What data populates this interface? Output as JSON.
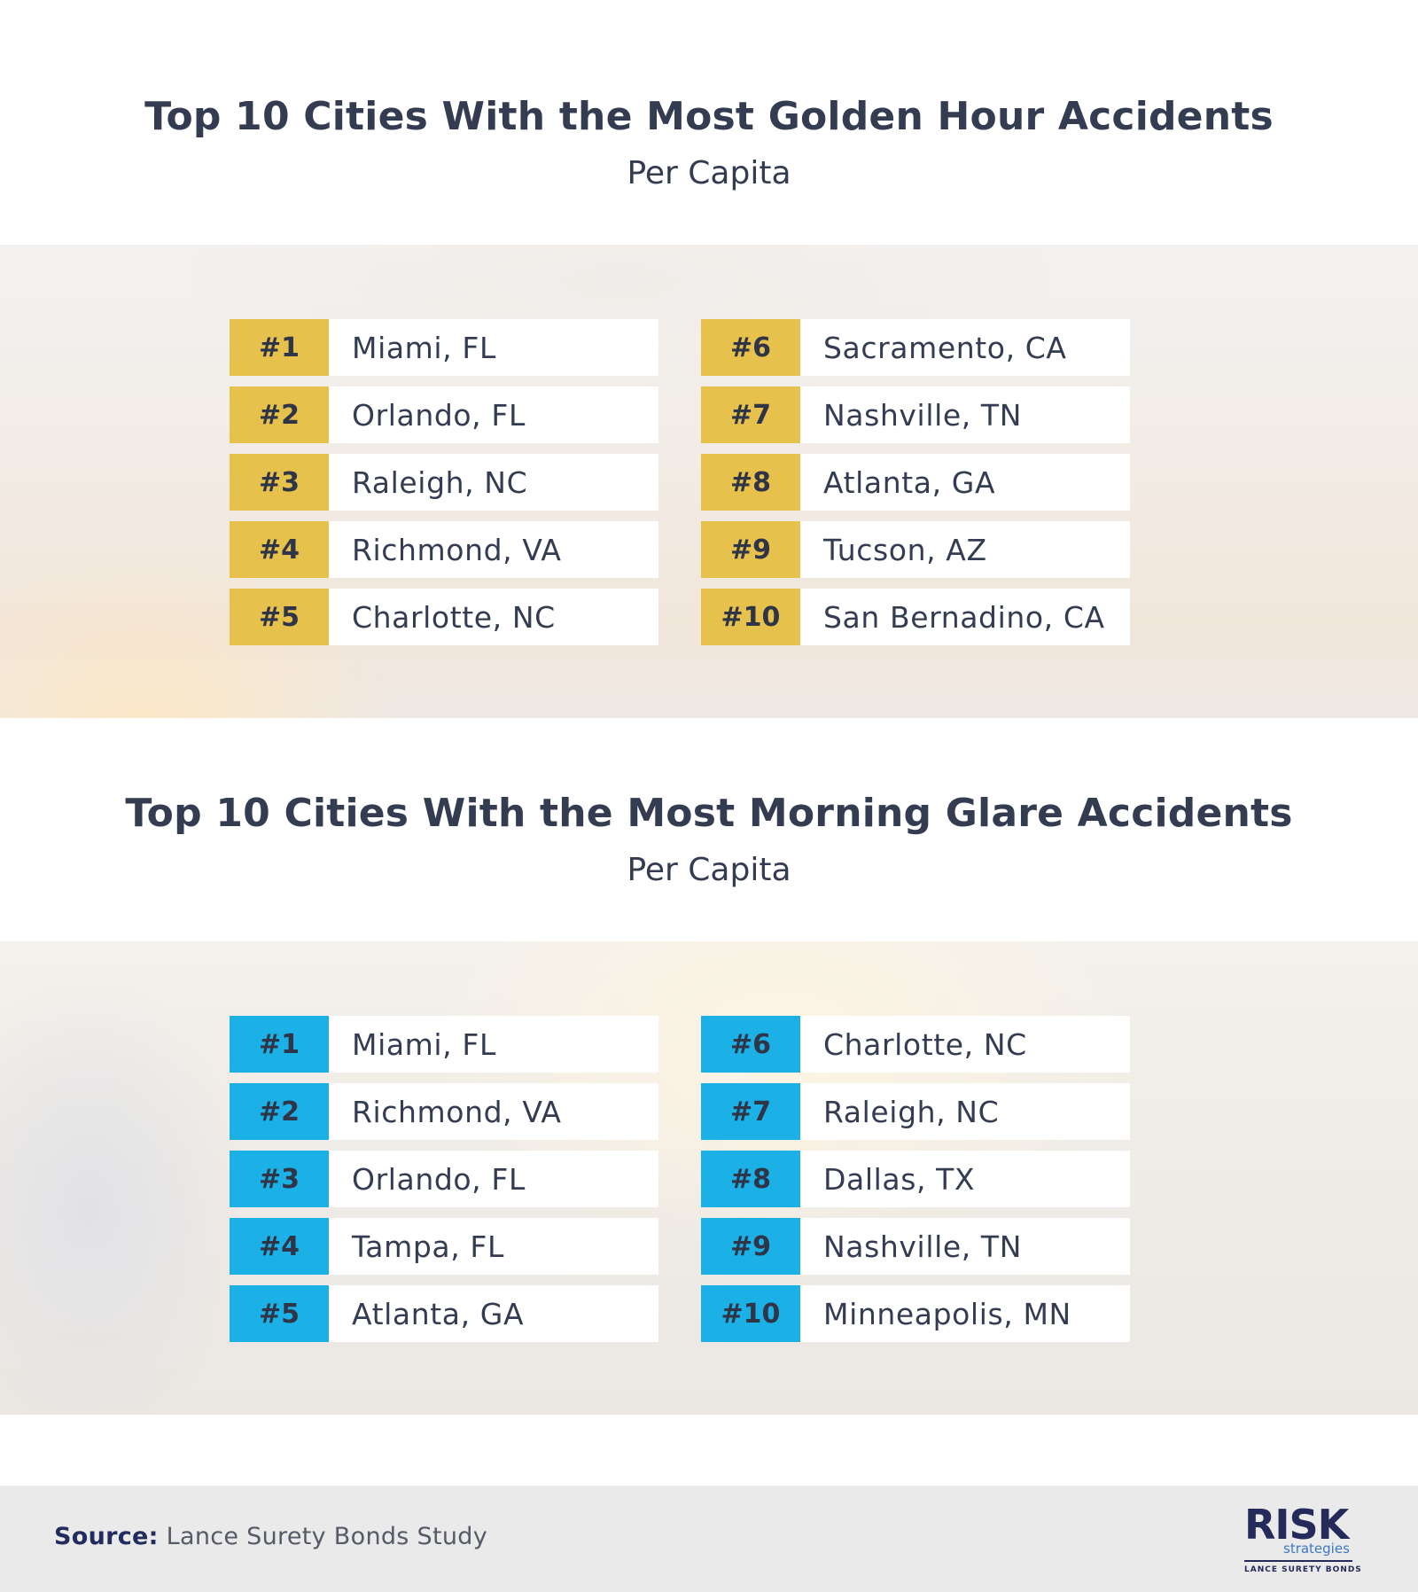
{
  "golden": {
    "title": "Top 10 Cities With the Most Golden Hour Accidents",
    "subtitle": "Per Capita",
    "left": [
      {
        "rank": "#1",
        "city": "Miami, FL"
      },
      {
        "rank": "#2",
        "city": "Orlando, FL"
      },
      {
        "rank": "#3",
        "city": "Raleigh, NC"
      },
      {
        "rank": "#4",
        "city": "Richmond, VA"
      },
      {
        "rank": "#5",
        "city": "Charlotte, NC"
      }
    ],
    "right": [
      {
        "rank": "#6",
        "city": "Sacramento, CA"
      },
      {
        "rank": "#7",
        "city": "Nashville, TN"
      },
      {
        "rank": "#8",
        "city": "Atlanta, GA"
      },
      {
        "rank": "#9",
        "city": "Tucson, AZ"
      },
      {
        "rank": "#10",
        "city": "San Bernadino, CA"
      }
    ],
    "accent": "#e6c24d"
  },
  "morning": {
    "title": "Top 10 Cities With the Most Morning Glare Accidents",
    "subtitle": "Per Capita",
    "left": [
      {
        "rank": "#1",
        "city": "Miami, FL"
      },
      {
        "rank": "#2",
        "city": "Richmond, VA"
      },
      {
        "rank": "#3",
        "city": "Orlando, FL"
      },
      {
        "rank": "#4",
        "city": "Tampa, FL"
      },
      {
        "rank": "#5",
        "city": "Atlanta, GA"
      }
    ],
    "right": [
      {
        "rank": "#6",
        "city": "Charlotte, NC"
      },
      {
        "rank": "#7",
        "city": "Raleigh, NC"
      },
      {
        "rank": "#8",
        "city": "Dallas, TX"
      },
      {
        "rank": "#9",
        "city": "Nashville, TN"
      },
      {
        "rank": "#10",
        "city": "Minneapolis, MN"
      }
    ],
    "accent": "#1bb1e6"
  },
  "footer": {
    "source_label": "Source:",
    "source_text": "Lance Surety Bonds Study",
    "logo_word": "RISK",
    "logo_sub": "strategies",
    "logo_bonds": "LANCE SURETY BONDS"
  }
}
